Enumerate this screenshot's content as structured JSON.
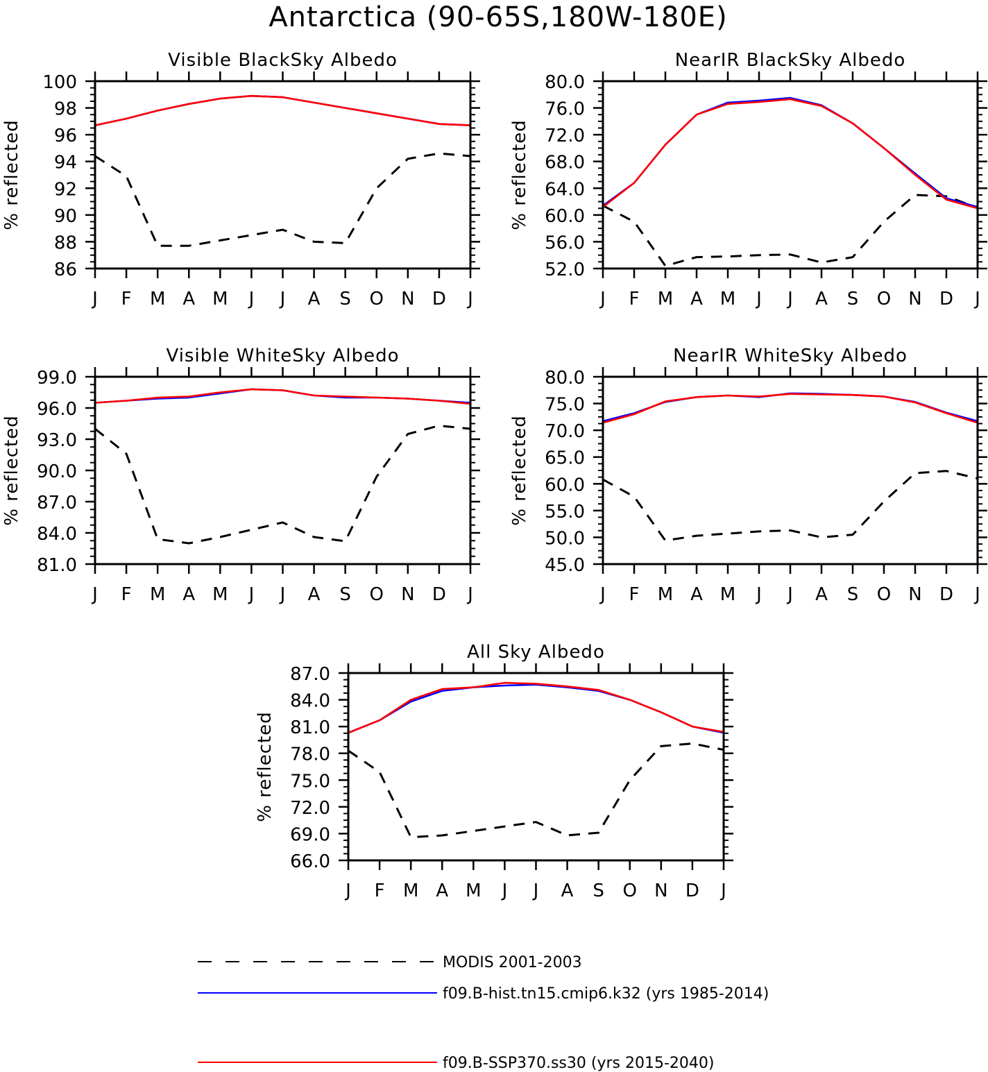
{
  "title": "Antarctica (90-65S,180W-180E)",
  "colors": {
    "modis": "#000000",
    "hist": "#0000ff",
    "ssp": "#ff0000"
  },
  "legend": [
    {
      "key": "modis",
      "label": "MODIS 2001-2003",
      "style": "dashed"
    },
    {
      "key": "hist",
      "label": "f09.B-hist.tn15.cmip6.k32 (yrs 1985-2014)",
      "style": "solid"
    },
    {
      "key": "ssp",
      "label": "f09.B-SSP370.ss30 (yrs 2015-2040)",
      "style": "solid"
    }
  ],
  "chart_data": [
    {
      "type": "line",
      "title": "Visible BlackSky Albedo",
      "ylabel": "% reflected",
      "xlabel": "",
      "categories": [
        "J",
        "F",
        "M",
        "A",
        "M",
        "J",
        "J",
        "A",
        "S",
        "O",
        "N",
        "D",
        "J"
      ],
      "ylim": [
        86,
        100
      ],
      "yticks": [
        "86",
        "88",
        "90",
        "92",
        "94",
        "96",
        "98",
        "100"
      ],
      "grid": false,
      "series": [
        {
          "name": "MODIS 2001-2003",
          "key": "modis",
          "values": [
            94.4,
            92.9,
            87.7,
            87.7,
            88.1,
            88.5,
            88.9,
            88.0,
            87.9,
            92.0,
            94.2,
            94.6,
            94.4
          ]
        },
        {
          "name": "f09.B-hist.tn15.cmip6.k32 (yrs 1985-2014)",
          "key": "hist",
          "values": [
            96.7,
            97.2,
            97.8,
            98.3,
            98.7,
            98.9,
            98.8,
            98.4,
            98.0,
            97.6,
            97.2,
            96.8,
            96.7
          ]
        },
        {
          "name": "f09.B-SSP370.ss30 (yrs 2015-2040)",
          "key": "ssp",
          "values": [
            96.7,
            97.2,
            97.8,
            98.3,
            98.7,
            98.9,
            98.8,
            98.4,
            98.0,
            97.6,
            97.2,
            96.8,
            96.7
          ]
        }
      ]
    },
    {
      "type": "line",
      "title": "NearIR BlackSky Albedo",
      "ylabel": "% reflected",
      "xlabel": "",
      "categories": [
        "J",
        "F",
        "M",
        "A",
        "M",
        "J",
        "J",
        "A",
        "S",
        "O",
        "N",
        "D",
        "J"
      ],
      "ylim": [
        52,
        80
      ],
      "yticks": [
        "52.0",
        "56.0",
        "60.0",
        "64.0",
        "68.0",
        "72.0",
        "76.0",
        "80.0"
      ],
      "grid": false,
      "series": [
        {
          "name": "MODIS 2001-2003",
          "key": "modis",
          "values": [
            61.4,
            59.0,
            52.4,
            53.7,
            53.8,
            54.0,
            54.1,
            52.9,
            53.7,
            59.0,
            63.0,
            62.8,
            61.1
          ]
        },
        {
          "name": "f09.B-hist.tn15.cmip6.k32 (yrs 1985-2014)",
          "key": "hist",
          "values": [
            61.4,
            64.8,
            70.5,
            75.0,
            76.8,
            77.1,
            77.5,
            76.4,
            73.7,
            70.0,
            66.2,
            62.5,
            61.2
          ]
        },
        {
          "name": "f09.B-SSP370.ss30 (yrs 2015-2040)",
          "key": "ssp",
          "values": [
            61.2,
            64.8,
            70.5,
            75.0,
            76.6,
            76.9,
            77.3,
            76.3,
            73.7,
            70.0,
            66.0,
            62.3,
            61.0
          ]
        }
      ]
    },
    {
      "type": "line",
      "title": "Visible WhiteSky Albedo",
      "ylabel": "% reflected",
      "xlabel": "",
      "categories": [
        "J",
        "F",
        "M",
        "A",
        "M",
        "J",
        "J",
        "A",
        "S",
        "O",
        "N",
        "D",
        "J"
      ],
      "ylim": [
        81,
        99
      ],
      "yticks": [
        "81.0",
        "84.0",
        "87.0",
        "90.0",
        "93.0",
        "96.0",
        "99.0"
      ],
      "grid": false,
      "series": [
        {
          "name": "MODIS 2001-2003",
          "key": "modis",
          "values": [
            94.0,
            91.6,
            83.4,
            83.0,
            83.6,
            84.3,
            85.0,
            83.6,
            83.2,
            89.4,
            93.5,
            94.3,
            94.0
          ]
        },
        {
          "name": "f09.B-hist.tn15.cmip6.k32 (yrs 1985-2014)",
          "key": "hist",
          "values": [
            96.5,
            96.7,
            96.9,
            97.0,
            97.4,
            97.8,
            97.7,
            97.2,
            97.0,
            97.0,
            96.9,
            96.7,
            96.5
          ]
        },
        {
          "name": "f09.B-SSP370.ss30 (yrs 2015-2040)",
          "key": "ssp",
          "values": [
            96.5,
            96.7,
            97.0,
            97.1,
            97.5,
            97.8,
            97.7,
            97.2,
            97.1,
            97.0,
            96.9,
            96.7,
            96.4
          ]
        }
      ]
    },
    {
      "type": "line",
      "title": "NearIR WhiteSky Albedo",
      "ylabel": "% reflected",
      "xlabel": "",
      "categories": [
        "J",
        "F",
        "M",
        "A",
        "M",
        "J",
        "J",
        "A",
        "S",
        "O",
        "N",
        "D",
        "J"
      ],
      "ylim": [
        45,
        80
      ],
      "yticks": [
        "45.0",
        "50.0",
        "55.0",
        "60.0",
        "65.0",
        "70.0",
        "75.0",
        "80.0"
      ],
      "grid": false,
      "series": [
        {
          "name": "MODIS 2001-2003",
          "key": "modis",
          "values": [
            60.8,
            57.6,
            49.4,
            50.3,
            50.7,
            51.1,
            51.3,
            50.0,
            50.5,
            56.7,
            62.0,
            62.4,
            61.0
          ]
        },
        {
          "name": "f09.B-hist.tn15.cmip6.k32 (yrs 1985-2014)",
          "key": "hist",
          "values": [
            71.7,
            73.2,
            75.3,
            76.2,
            76.5,
            76.2,
            76.9,
            76.8,
            76.6,
            76.3,
            75.3,
            73.3,
            71.7
          ]
        },
        {
          "name": "f09.B-SSP370.ss30 (yrs 2015-2040)",
          "key": "ssp",
          "values": [
            71.4,
            73.0,
            75.4,
            76.2,
            76.5,
            76.3,
            76.8,
            76.7,
            76.6,
            76.3,
            75.2,
            73.2,
            71.4
          ]
        }
      ]
    },
    {
      "type": "line",
      "title": "All Sky Albedo",
      "ylabel": "% reflected",
      "xlabel": "",
      "categories": [
        "J",
        "F",
        "M",
        "A",
        "M",
        "J",
        "J",
        "A",
        "S",
        "O",
        "N",
        "D",
        "J"
      ],
      "ylim": [
        66,
        87
      ],
      "yticks": [
        "66.0",
        "69.0",
        "72.0",
        "75.0",
        "78.0",
        "81.0",
        "84.0",
        "87.0"
      ],
      "grid": false,
      "series": [
        {
          "name": "MODIS 2001-2003",
          "key": "modis",
          "values": [
            78.3,
            75.9,
            68.6,
            68.8,
            69.3,
            69.8,
            70.3,
            68.8,
            69.1,
            75.0,
            78.8,
            79.1,
            78.4
          ]
        },
        {
          "name": "f09.B-hist.tn15.cmip6.k32 (yrs 1985-2014)",
          "key": "hist",
          "values": [
            80.3,
            81.7,
            83.8,
            85.0,
            85.4,
            85.6,
            85.7,
            85.4,
            85.0,
            84.0,
            82.6,
            81.0,
            80.3
          ]
        },
        {
          "name": "f09.B-SSP370.ss30 (yrs 2015-2040)",
          "key": "ssp",
          "values": [
            80.3,
            81.7,
            84.0,
            85.2,
            85.4,
            85.9,
            85.8,
            85.5,
            85.1,
            84.0,
            82.6,
            81.0,
            80.4
          ]
        }
      ]
    }
  ]
}
